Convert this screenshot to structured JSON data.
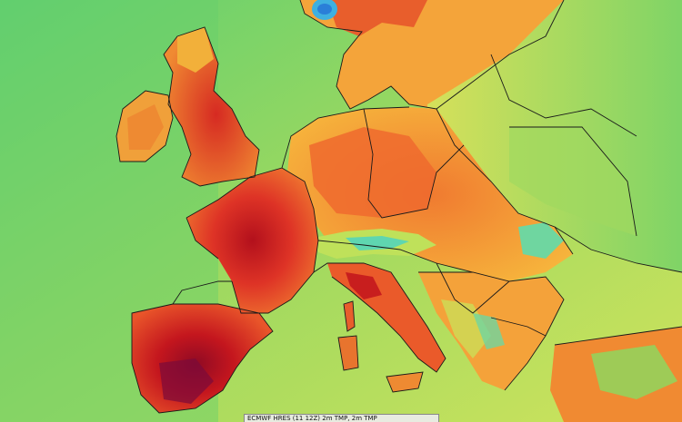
{
  "caption": "ECMWF HRES (11 12Z) 2m TMP, 2m TMP",
  "colors": {
    "sea_cool": "#6fcf6a",
    "sea_mid": "#b6e35a",
    "land_warm": "#f5a23a",
    "land_hot": "#e8442a",
    "land_very_hot": "#b3101c",
    "extreme": "#8a0a3a",
    "mountain_cool": "#5fd6b0",
    "snow_cap": "#3fb0e0",
    "border_line": "#1a1a1a"
  }
}
